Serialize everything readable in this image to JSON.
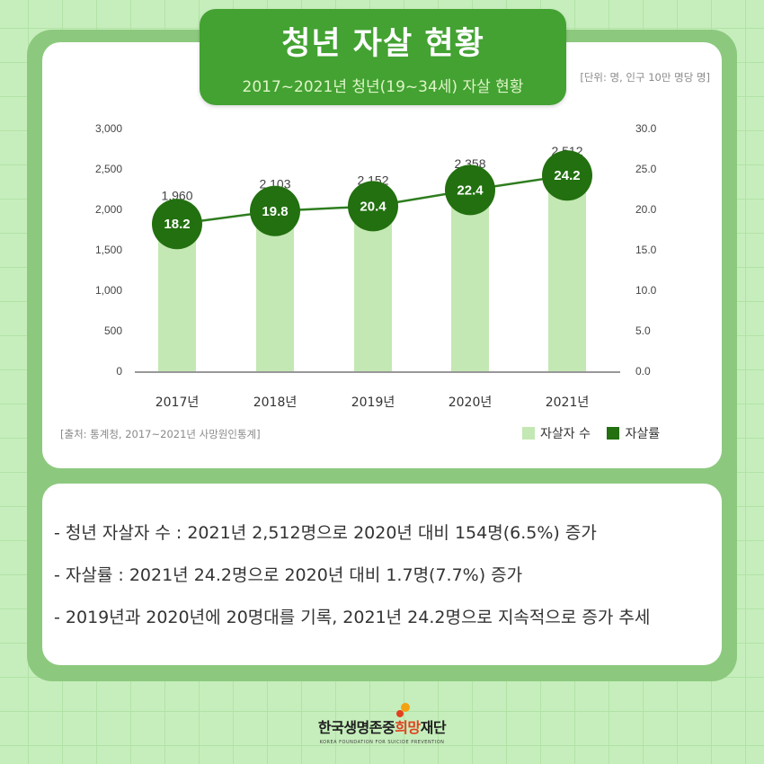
{
  "header": {
    "title": "청년 자살 현황",
    "subtitle": "2017~2021년 청년(19~34세) 자살 현황",
    "unit_note": "[단위: 명, 인구 10만 명당 명]"
  },
  "source_note": "[출처: 통계청, 2017~2021년 사망원인통계]",
  "legend": {
    "bar_label": "자살자 수",
    "line_label": "자살률"
  },
  "colors": {
    "bar": "#c3e8b3",
    "line": "#2e7d1f",
    "circle": "#22700f",
    "banner": "#43a232",
    "frame": "#8cc97e"
  },
  "chart_data": {
    "type": "bar",
    "categories": [
      "2017년",
      "2018년",
      "2019년",
      "2020년",
      "2021년"
    ],
    "series": [
      {
        "name": "자살자 수",
        "type": "bar",
        "axis": "left",
        "values": [
          1960,
          2103,
          2152,
          2358,
          2512
        ],
        "labels": [
          "1,960",
          "2,103",
          "2,152",
          "2,358",
          "2,512"
        ]
      },
      {
        "name": "자살률",
        "type": "line",
        "axis": "right",
        "values": [
          18.2,
          19.8,
          20.4,
          22.4,
          24.2
        ],
        "labels": [
          "18.2",
          "19.8",
          "20.4",
          "22.4",
          "24.2"
        ]
      }
    ],
    "y_left": {
      "range": [
        0,
        3000
      ],
      "ticks": [
        "0",
        "500",
        "1,000",
        "1,500",
        "2,000",
        "2,500",
        "3,000"
      ]
    },
    "y_right": {
      "range": [
        0,
        30
      ],
      "ticks": [
        "0.0",
        "5.0",
        "10.0",
        "15.0",
        "20.0",
        "25.0",
        "30.0"
      ]
    },
    "grid": false,
    "legend_position": "bottom-right"
  },
  "bullets": [
    "- 청년 자살자 수 : 2021년 2,512명으로 2020년 대비 154명(6.5%) 증가",
    "- 자살률 : 2021년 24.2명으로 2020년 대비 1.7명(7.7%) 증가",
    "- 2019년과 2020년에 20명대를 기록, 2021년 24.2명으로 지속적으로 증가 추세"
  ],
  "footer": {
    "org_name_pre": "한국생명존중",
    "org_name_highlight": "희망",
    "org_name_post": "재단",
    "org_name_en": "KOREA FOUNDATION FOR SUICIDE PREVENTION"
  }
}
